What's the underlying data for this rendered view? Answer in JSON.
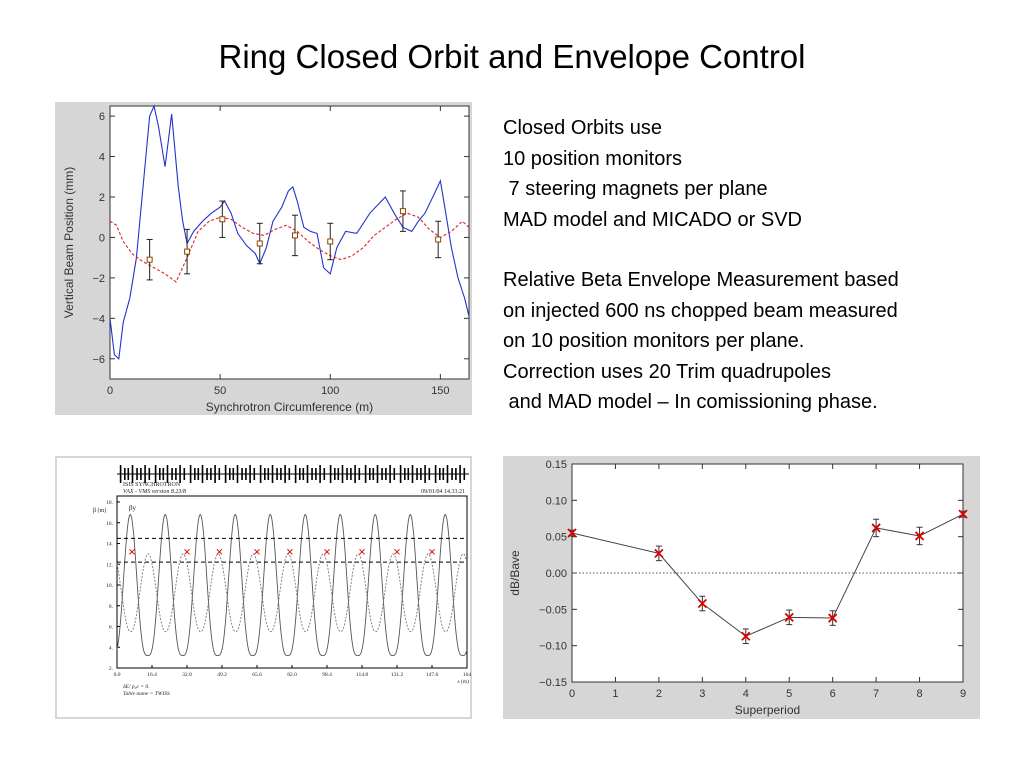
{
  "title": "Ring Closed Orbit and Envelope Control",
  "text_lines_1": [
    "Closed Orbits use",
    "10 position monitors",
    " 7 steering magnets per plane",
    "MAD model and MICADO or SVD"
  ],
  "text_lines_2": [
    "Relative Beta Envelope Measurement based",
    "on injected 600 ns chopped beam measured",
    "on 10 position monitors per plane.",
    "Correction uses 20 Trim quadrupoles",
    " and MAD model – In comissioning phase."
  ],
  "colors": {
    "panel_bg": "#d6d6d6",
    "orbit_line": "#2233cc",
    "model_line": "#dd2222",
    "marker_red": "#dd0000"
  },
  "chart_data": [
    {
      "type": "line",
      "xlabel": "Synchrotron Circumference (m)",
      "ylabel": "Vertical Beam Position (mm)",
      "xlim": [
        0,
        163
      ],
      "ylim": [
        -7,
        6.5
      ],
      "xticks": [
        "0",
        "50",
        "100",
        "150"
      ],
      "yticks": [
        "−6",
        "−4",
        "−2",
        "0",
        "2",
        "4",
        "6"
      ],
      "series": [
        {
          "style": "solid",
          "x": [
            0,
            2,
            4,
            6,
            9,
            12,
            15,
            18,
            20,
            22,
            25,
            28,
            31,
            33,
            35,
            38,
            42,
            46,
            50,
            52,
            55,
            58,
            62,
            66,
            68,
            71,
            74,
            78,
            81,
            83,
            85,
            88,
            91,
            94,
            97,
            100,
            103,
            107,
            112,
            118,
            125,
            129,
            133,
            137,
            140,
            143,
            147,
            150,
            152,
            155,
            158,
            161,
            163
          ],
          "y": [
            -4,
            -5.8,
            -6,
            -4.2,
            -3,
            -1,
            2.5,
            6,
            6.5,
            5.5,
            3.5,
            6.1,
            2.5,
            0.8,
            -0.3,
            0.3,
            0.8,
            1.2,
            1.5,
            1.8,
            1.2,
            0.2,
            -0.4,
            -0.8,
            -1.3,
            -0.5,
            0.8,
            1.5,
            2.3,
            2.5,
            1.8,
            0.5,
            0.3,
            0.2,
            -1.5,
            -1.8,
            -0.5,
            0.3,
            0.2,
            1.2,
            2,
            1.2,
            0.5,
            0.3,
            0.8,
            1.2,
            2.1,
            2.8,
            1.5,
            -0.5,
            -2,
            -3,
            -3.9
          ]
        },
        {
          "style": "dashed",
          "x": [
            0,
            3,
            6,
            10,
            15,
            20,
            25,
            30,
            35,
            40,
            45,
            50,
            55,
            60,
            65,
            70,
            75,
            80,
            85,
            90,
            95,
            100,
            105,
            110,
            115,
            120,
            125,
            130,
            135,
            140,
            145,
            150,
            155,
            160,
            163
          ],
          "y": [
            0.8,
            0.6,
            -0.2,
            -0.8,
            -1.2,
            -1.5,
            -1.8,
            -2.2,
            -1,
            0.3,
            0.8,
            1,
            0.9,
            0.5,
            0.2,
            0.1,
            0.4,
            0.6,
            0.3,
            -0.2,
            -0.6,
            -0.9,
            -1.1,
            -0.9,
            -0.5,
            0.1,
            0.5,
            0.9,
            1.2,
            1,
            0.4,
            0,
            0.3,
            0.8,
            0.5
          ]
        }
      ],
      "measurements": {
        "x": [
          18,
          35,
          51,
          68,
          84,
          100,
          133,
          149
        ],
        "y": [
          -1.1,
          -0.7,
          0.9,
          -0.3,
          0.1,
          -0.2,
          1.3,
          -0.1
        ],
        "err": [
          1,
          1.1,
          0.9,
          1,
          1,
          0.9,
          1,
          0.9
        ]
      }
    },
    {
      "type": "line",
      "header_lines": [
        "ISIS SYNCHROTRON",
        "VAX - VMS version 8.23/8"
      ],
      "header_right": "09/01/04  14.33.21",
      "ylabel": "β (m)",
      "xlabel": "s (m)",
      "beta_label": "βy",
      "footer_lines": [
        "δE/ p₀c  =  0.",
        "Table name = TWISS"
      ],
      "xlim": [
        0,
        164
      ],
      "ylim": [
        2,
        18
      ],
      "xticks": [
        "0.0",
        "16.4",
        "32.8",
        "49.2",
        "65.6",
        "82.0",
        "98.4",
        "114.8",
        "131.2",
        "147.6",
        "164"
      ],
      "yticks": [
        "2.",
        "4.",
        "6.",
        "8.",
        "10.",
        "12.",
        "14.",
        "16.",
        "18."
      ],
      "dashed_levels": [
        12.2,
        14.5
      ],
      "x_markers": {
        "x": [
          7,
          32.8,
          48,
          65.6,
          81,
          98.4,
          114.8,
          131.2,
          147.6
        ],
        "y": [
          13.2,
          13.2,
          13.2,
          13.2,
          13.2,
          13.2,
          13.2,
          13.2,
          13.2
        ]
      },
      "beta_period": 16.4,
      "beta_peak": 16.8,
      "beta_min": 3.2
    },
    {
      "type": "line",
      "xlabel": "Superperiod",
      "ylabel": "dB/Bave",
      "xlim": [
        0,
        9
      ],
      "ylim": [
        -0.15,
        0.15
      ],
      "xticks": [
        "0",
        "1",
        "2",
        "3",
        "4",
        "5",
        "6",
        "7",
        "8",
        "9"
      ],
      "yticks": [
        "0.15",
        "0.10",
        "0.05",
        "0.00",
        "−0.05",
        "−0.10",
        "−0.15"
      ],
      "series": [
        {
          "x": [
            0,
            2,
            3,
            4,
            5,
            6,
            7,
            8,
            9
          ],
          "y": [
            0.055,
            0.027,
            -0.042,
            -0.087,
            -0.061,
            -0.062,
            0.062,
            0.051,
            0.081
          ],
          "err": [
            0.004,
            0.01,
            0.01,
            0.01,
            0.01,
            0.01,
            0.012,
            0.012,
            0.004
          ]
        }
      ]
    }
  ]
}
